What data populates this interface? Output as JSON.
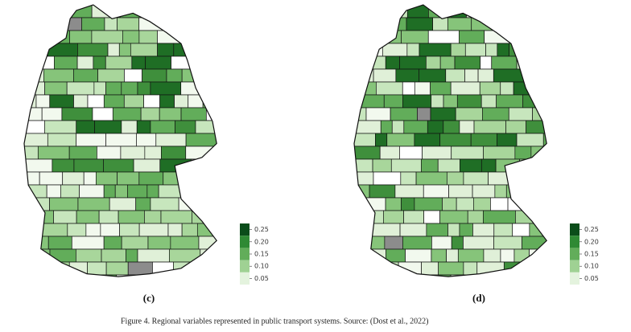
{
  "maps": [
    {
      "label": "(c)",
      "legend": {
        "ticks": [
          0.25,
          {
            "value": 0.2,
            "label": "0.20"
          },
          0.15,
          {
            "value": 0.1,
            "label": "0.10"
          },
          0.05
        ]
      }
    },
    {
      "label": "(d)",
      "legend": {
        "ticks": [
          0.25,
          {
            "value": 0.2,
            "label": "0.20"
          },
          0.15,
          {
            "value": 0.1,
            "label": "0.10"
          },
          0.05
        ]
      }
    }
  ],
  "caption": "Figure 4. Regional variables represented in public transport systems. Source: (Dost et al., 2022)"
}
